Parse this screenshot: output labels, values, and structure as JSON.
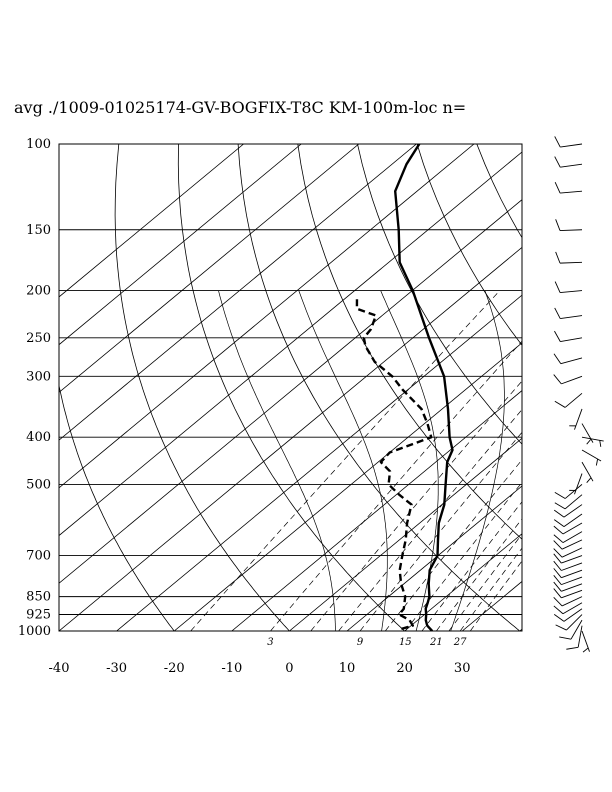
{
  "title": "avg ./1009-01025174-GV-BOGFIX-T8C KM-100m-loc n=",
  "chart_data": {
    "type": "skew-t",
    "title": "avg ./1009-01025174-GV-BOGFIX-T8C KM-100m-loc n=",
    "pressure_levels_hPa": [
      100,
      150,
      200,
      250,
      300,
      400,
      500,
      700,
      850,
      925,
      1000
    ],
    "pressure_tick_labels": [
      "100",
      "150",
      "200",
      "250",
      "300",
      "400",
      "500",
      "700",
      "850",
      "925",
      "1000"
    ],
    "temperature_ticks_C": [
      -40,
      -30,
      -20,
      -10,
      0,
      10,
      20,
      30
    ],
    "temperature_tick_labels": [
      "-40",
      "-30",
      "-20",
      "-10",
      "0",
      "10",
      "20",
      "30"
    ],
    "plim_hPa": [
      1000,
      100
    ],
    "tlim_at_1000hPa_C": [
      -40,
      40
    ],
    "mixing_ratio_labels": [
      "3",
      "9",
      "15",
      "21",
      "27"
    ],
    "mixing_ratio_values": [
      3,
      9,
      15,
      21,
      27
    ],
    "isotherms_C": [
      -110,
      -100,
      -90,
      -80,
      -70,
      -60,
      -50,
      -40,
      -30,
      -20,
      -10,
      0,
      10,
      20,
      30,
      40
    ],
    "dry_adiabats_theta_C": [
      -20,
      0,
      20,
      40,
      60,
      80,
      100,
      120,
      140
    ],
    "moist_adiabats_start_C": [
      8,
      16,
      22,
      28
    ],
    "temperature_profile": [
      {
        "p": 1000,
        "t": 24.8
      },
      {
        "p": 975,
        "t": 22.8
      },
      {
        "p": 950,
        "t": 21.4
      },
      {
        "p": 925,
        "t": 20.3
      },
      {
        "p": 900,
        "t": 19.0
      },
      {
        "p": 875,
        "t": 18.1
      },
      {
        "p": 850,
        "t": 17.1
      },
      {
        "p": 800,
        "t": 14.3
      },
      {
        "p": 750,
        "t": 11.6
      },
      {
        "p": 700,
        "t": 9.9
      },
      {
        "p": 650,
        "t": 6.7
      },
      {
        "p": 600,
        "t": 3.3
      },
      {
        "p": 550,
        "t": 0.4
      },
      {
        "p": 500,
        "t": -3.6
      },
      {
        "p": 450,
        "t": -8.0
      },
      {
        "p": 425,
        "t": -9.6
      },
      {
        "p": 400,
        "t": -12.8
      },
      {
        "p": 350,
        "t": -19.0
      },
      {
        "p": 300,
        "t": -26.5
      },
      {
        "p": 250,
        "t": -37.2
      },
      {
        "p": 200,
        "t": -49.9
      },
      {
        "p": 175,
        "t": -58.1
      },
      {
        "p": 150,
        "t": -65.1
      },
      {
        "p": 125,
        "t": -73.8
      },
      {
        "p": 110,
        "t": -77.5
      },
      {
        "p": 100,
        "t": -79.5
      }
    ],
    "dewpoint_profile": [
      {
        "p": 990,
        "t": 19.0
      },
      {
        "p": 975,
        "t": 20.3
      },
      {
        "p": 950,
        "t": 18.6
      },
      {
        "p": 925,
        "t": 15.6
      },
      {
        "p": 900,
        "t": 15.2
      },
      {
        "p": 850,
        "t": 12.9
      },
      {
        "p": 800,
        "t": 9.5
      },
      {
        "p": 750,
        "t": 6.4
      },
      {
        "p": 700,
        "t": 3.8
      },
      {
        "p": 650,
        "t": 1.1
      },
      {
        "p": 600,
        "t": -2.2
      },
      {
        "p": 550,
        "t": -5.3
      },
      {
        "p": 525,
        "t": -9.5
      },
      {
        "p": 500,
        "t": -13.5
      },
      {
        "p": 470,
        "t": -16.0
      },
      {
        "p": 450,
        "t": -19.5
      },
      {
        "p": 430,
        "t": -20.0
      },
      {
        "p": 415,
        "t": -18.0
      },
      {
        "p": 400,
        "t": -16.0
      },
      {
        "p": 375,
        "t": -19.5
      },
      {
        "p": 350,
        "t": -23.6
      },
      {
        "p": 320,
        "t": -30.8
      },
      {
        "p": 300,
        "t": -35.5
      },
      {
        "p": 280,
        "t": -41.6
      },
      {
        "p": 260,
        "t": -46.5
      },
      {
        "p": 250,
        "t": -48.5
      },
      {
        "p": 240,
        "t": -49.1
      },
      {
        "p": 225,
        "t": -51.1
      },
      {
        "p": 218,
        "t": -55.8
      },
      {
        "p": 205,
        "t": -58.5
      }
    ],
    "wind_barbs": [
      {
        "p": 1000,
        "dir_deg": 160,
        "speed_kt": 5
      },
      {
        "p": 975,
        "dir_deg": 190,
        "speed_kt": 10
      },
      {
        "p": 950,
        "dir_deg": 210,
        "speed_kt": 10
      },
      {
        "p": 925,
        "dir_deg": 225,
        "speed_kt": 10
      },
      {
        "p": 900,
        "dir_deg": 235,
        "speed_kt": 10
      },
      {
        "p": 875,
        "dir_deg": 240,
        "speed_kt": 10
      },
      {
        "p": 850,
        "dir_deg": 245,
        "speed_kt": 10
      },
      {
        "p": 825,
        "dir_deg": 250,
        "speed_kt": 10
      },
      {
        "p": 800,
        "dir_deg": 250,
        "speed_kt": 10
      },
      {
        "p": 775,
        "dir_deg": 250,
        "speed_kt": 10
      },
      {
        "p": 750,
        "dir_deg": 250,
        "speed_kt": 10
      },
      {
        "p": 725,
        "dir_deg": 250,
        "speed_kt": 10
      },
      {
        "p": 700,
        "dir_deg": 250,
        "speed_kt": 10
      },
      {
        "p": 675,
        "dir_deg": 245,
        "speed_kt": 10
      },
      {
        "p": 650,
        "dir_deg": 245,
        "speed_kt": 10
      },
      {
        "p": 625,
        "dir_deg": 240,
        "speed_kt": 10
      },
      {
        "p": 600,
        "dir_deg": 240,
        "speed_kt": 10
      },
      {
        "p": 575,
        "dir_deg": 235,
        "speed_kt": 10
      },
      {
        "p": 550,
        "dir_deg": 235,
        "speed_kt": 10
      },
      {
        "p": 525,
        "dir_deg": 230,
        "speed_kt": 10
      },
      {
        "p": 500,
        "dir_deg": 230,
        "speed_kt": 10
      },
      {
        "p": 475,
        "dir_deg": 200,
        "speed_kt": 5
      },
      {
        "p": 450,
        "dir_deg": 150,
        "speed_kt": 5
      },
      {
        "p": 425,
        "dir_deg": 120,
        "speed_kt": 5
      },
      {
        "p": 400,
        "dir_deg": 100,
        "speed_kt": 5
      },
      {
        "p": 375,
        "dir_deg": 150,
        "speed_kt": 5
      },
      {
        "p": 350,
        "dir_deg": 200,
        "speed_kt": 5
      },
      {
        "p": 325,
        "dir_deg": 230,
        "speed_kt": 10
      },
      {
        "p": 300,
        "dir_deg": 250,
        "speed_kt": 10
      },
      {
        "p": 275,
        "dir_deg": 255,
        "speed_kt": 10
      },
      {
        "p": 250,
        "dir_deg": 260,
        "speed_kt": 10
      },
      {
        "p": 225,
        "dir_deg": 262,
        "speed_kt": 10
      },
      {
        "p": 200,
        "dir_deg": 265,
        "speed_kt": 10
      },
      {
        "p": 175,
        "dir_deg": 268,
        "speed_kt": 10
      },
      {
        "p": 150,
        "dir_deg": 268,
        "speed_kt": 10
      },
      {
        "p": 125,
        "dir_deg": 265,
        "speed_kt": 10
      },
      {
        "p": 110,
        "dir_deg": 262,
        "speed_kt": 10
      },
      {
        "p": 100,
        "dir_deg": 262,
        "speed_kt": 10
      }
    ],
    "grid": true
  }
}
